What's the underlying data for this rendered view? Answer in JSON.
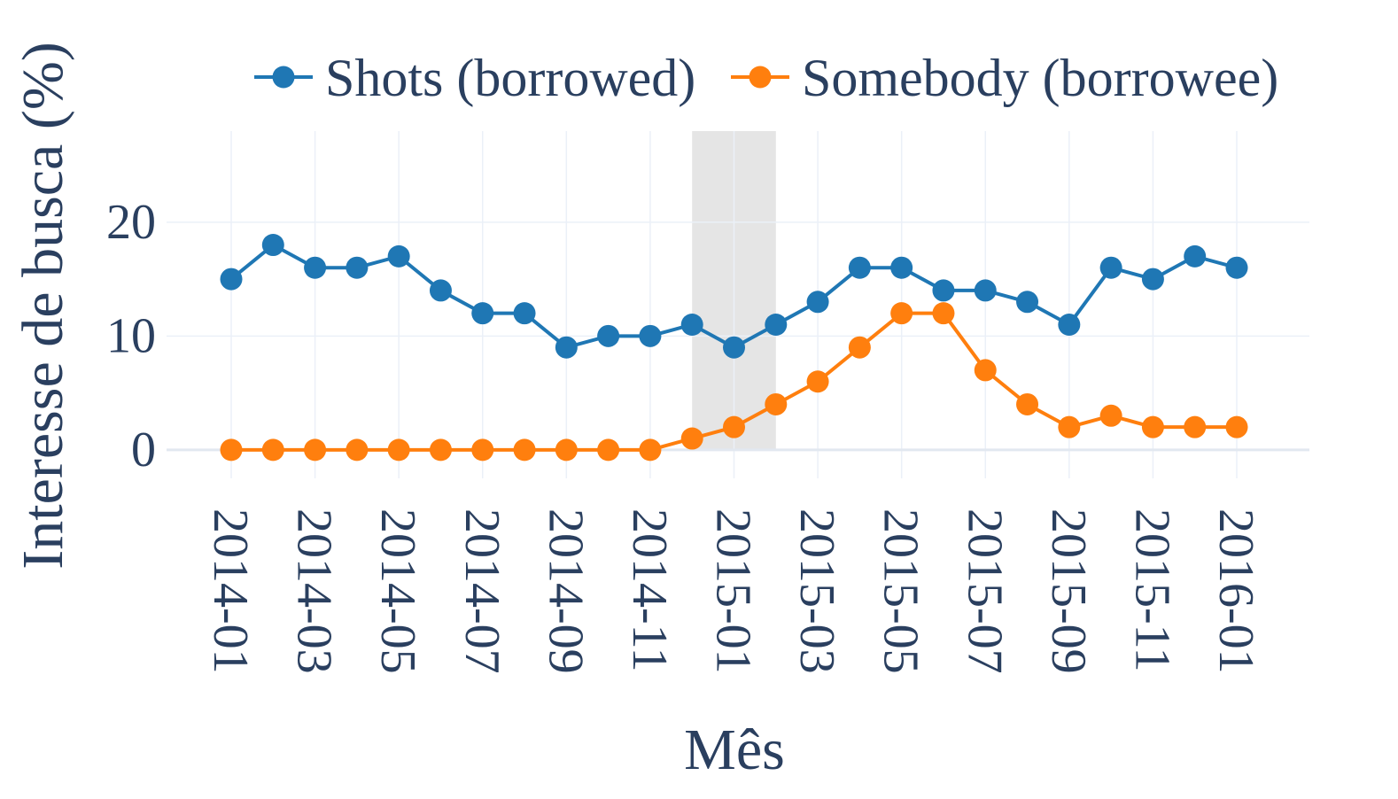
{
  "chart_data": {
    "type": "line",
    "x": [
      "2014-01",
      "2014-02",
      "2014-03",
      "2014-04",
      "2014-05",
      "2014-06",
      "2014-07",
      "2014-08",
      "2014-09",
      "2014-10",
      "2014-11",
      "2014-12",
      "2015-01",
      "2015-02",
      "2015-03",
      "2015-04",
      "2015-05",
      "2015-06",
      "2015-07",
      "2015-08",
      "2015-09",
      "2015-10",
      "2015-11",
      "2015-12",
      "2016-01"
    ],
    "x_ticks": [
      "2014-01",
      "2014-03",
      "2014-05",
      "2014-07",
      "2014-09",
      "2014-11",
      "2015-01",
      "2015-03",
      "2015-05",
      "2015-07",
      "2015-09",
      "2015-11",
      "2016-01"
    ],
    "series": [
      {
        "name": "Shots (borrowed)",
        "color": "#1f77b4",
        "values": [
          15,
          18,
          16,
          16,
          17,
          14,
          12,
          12,
          9,
          10,
          10,
          11,
          9,
          11,
          13,
          16,
          16,
          14,
          14,
          13,
          11,
          16,
          15,
          17,
          16
        ]
      },
      {
        "name": "Somebody (borrowee)",
        "color": "#ff7f0e",
        "values": [
          0,
          0,
          0,
          0,
          0,
          0,
          0,
          0,
          0,
          0,
          0,
          1,
          2,
          4,
          6,
          9,
          12,
          12,
          7,
          4,
          2,
          3,
          2,
          2,
          2
        ]
      }
    ],
    "highlight_range": [
      "2014-12",
      "2015-02"
    ],
    "highlight_color": "#d3d3d3",
    "xlabel": "Mês",
    "ylabel": "Interesse de busca (%)",
    "ylim": [
      -2.5,
      28
    ],
    "y_ticks": [
      0,
      10,
      20
    ],
    "legend_position": "top-right",
    "grid": true
  }
}
